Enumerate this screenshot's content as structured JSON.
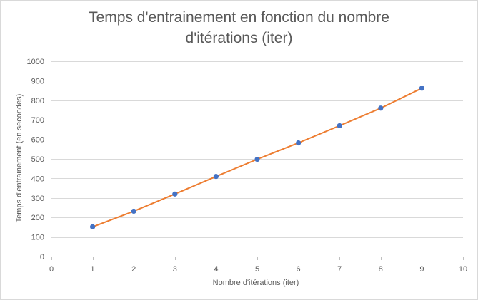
{
  "chart_data": {
    "type": "line",
    "title_line1": "Temps d'entrainement en fonction du nombre",
    "title_line2": "d'itérations (iter)",
    "xlabel": "Nombre d'itérations (iter)",
    "ylabel": "Temps d'entrainement (en secondes)",
    "xlim": [
      0,
      10
    ],
    "ylim": [
      0,
      1000
    ],
    "xticks": [
      0,
      1,
      2,
      3,
      4,
      5,
      6,
      7,
      8,
      9,
      10
    ],
    "yticks": [
      0,
      100,
      200,
      300,
      400,
      500,
      600,
      700,
      800,
      900,
      1000
    ],
    "grid": "horizontal",
    "legend": "none",
    "line_color": "#ED7D31",
    "marker_color": "#4472C4",
    "series": [
      {
        "x": [
          1,
          2,
          3,
          4,
          5,
          6,
          7,
          8,
          9
        ],
        "values": [
          152,
          232,
          320,
          410,
          498,
          582,
          670,
          760,
          862
        ]
      }
    ]
  }
}
